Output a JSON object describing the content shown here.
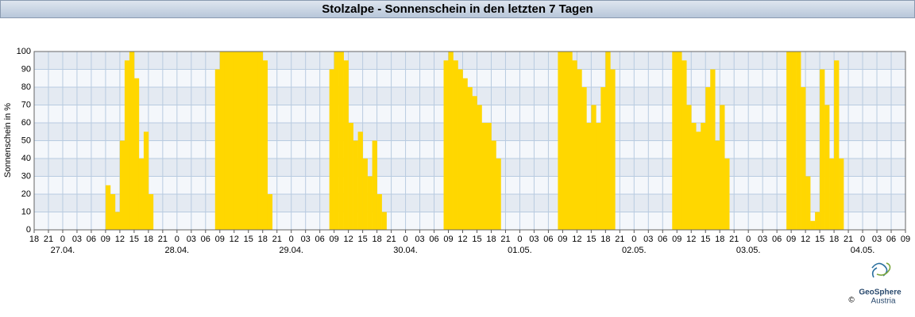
{
  "chart_data": {
    "type": "bar",
    "title": "Stolzalpe - Sonnenschein in den letzten 7 Tagen",
    "y_label": "Sonnenschein in %",
    "color": "#ffd700",
    "x": [
      15,
      16,
      17,
      18,
      19,
      20,
      21,
      22,
      23,
      24,
      38,
      39,
      40,
      41,
      42,
      43,
      44,
      45,
      46,
      47,
      48,
      49,
      62,
      63,
      64,
      65,
      66,
      67,
      68,
      69,
      70,
      71,
      72,
      73,
      86,
      87,
      88,
      89,
      90,
      91,
      92,
      93,
      94,
      95,
      96,
      97,
      110,
      111,
      112,
      113,
      114,
      115,
      116,
      117,
      118,
      119,
      120,
      121,
      134,
      135,
      136,
      137,
      138,
      139,
      140,
      141,
      142,
      143,
      144,
      145,
      158,
      159,
      160,
      161,
      162,
      163,
      164,
      165,
      166,
      167,
      168,
      169
    ],
    "values": [
      25,
      20,
      10,
      50,
      95,
      100,
      85,
      40,
      55,
      20,
      90,
      100,
      100,
      100,
      100,
      100,
      100,
      100,
      100,
      100,
      95,
      20,
      90,
      100,
      100,
      95,
      60,
      50,
      55,
      40,
      30,
      50,
      20,
      10,
      95,
      100,
      95,
      90,
      85,
      80,
      75,
      70,
      60,
      60,
      50,
      40,
      100,
      100,
      100,
      95,
      90,
      80,
      60,
      70,
      60,
      80,
      100,
      90,
      100,
      100,
      95,
      70,
      60,
      55,
      60,
      80,
      90,
      50,
      70,
      40,
      100,
      100,
      100,
      80,
      30,
      5,
      10,
      90,
      70,
      40,
      95,
      40
    ],
    "xlim": [
      0,
      183
    ],
    "xticks": [
      {
        "value": 0,
        "label": "18"
      },
      {
        "value": 3,
        "label": "21"
      },
      {
        "value": 6,
        "label": "0"
      },
      {
        "value": 9,
        "label": "03"
      },
      {
        "value": 12,
        "label": "06"
      },
      {
        "value": 15,
        "label": "09"
      },
      {
        "value": 18,
        "label": "12"
      },
      {
        "value": 21,
        "label": "15"
      },
      {
        "value": 24,
        "label": "18"
      },
      {
        "value": 27,
        "label": "21"
      },
      {
        "value": 30,
        "label": "0"
      },
      {
        "value": 33,
        "label": "03"
      },
      {
        "value": 36,
        "label": "06"
      },
      {
        "value": 39,
        "label": "09"
      },
      {
        "value": 42,
        "label": "12"
      },
      {
        "value": 45,
        "label": "15"
      },
      {
        "value": 48,
        "label": "18"
      },
      {
        "value": 51,
        "label": "21"
      },
      {
        "value": 54,
        "label": "0"
      },
      {
        "value": 57,
        "label": "03"
      },
      {
        "value": 60,
        "label": "06"
      },
      {
        "value": 63,
        "label": "09"
      },
      {
        "value": 66,
        "label": "12"
      },
      {
        "value": 69,
        "label": "15"
      },
      {
        "value": 72,
        "label": "18"
      },
      {
        "value": 75,
        "label": "21"
      },
      {
        "value": 78,
        "label": "0"
      },
      {
        "value": 81,
        "label": "03"
      },
      {
        "value": 84,
        "label": "06"
      },
      {
        "value": 87,
        "label": "09"
      },
      {
        "value": 90,
        "label": "12"
      },
      {
        "value": 93,
        "label": "15"
      },
      {
        "value": 96,
        "label": "18"
      },
      {
        "value": 99,
        "label": "21"
      },
      {
        "value": 102,
        "label": "0"
      },
      {
        "value": 105,
        "label": "03"
      },
      {
        "value": 108,
        "label": "06"
      },
      {
        "value": 111,
        "label": "09"
      },
      {
        "value": 114,
        "label": "12"
      },
      {
        "value": 117,
        "label": "15"
      },
      {
        "value": 120,
        "label": "18"
      },
      {
        "value": 123,
        "label": "21"
      },
      {
        "value": 126,
        "label": "0"
      },
      {
        "value": 129,
        "label": "03"
      },
      {
        "value": 132,
        "label": "06"
      },
      {
        "value": 135,
        "label": "09"
      },
      {
        "value": 138,
        "label": "12"
      },
      {
        "value": 141,
        "label": "15"
      },
      {
        "value": 144,
        "label": "18"
      },
      {
        "value": 147,
        "label": "21"
      },
      {
        "value": 150,
        "label": "0"
      },
      {
        "value": 153,
        "label": "03"
      },
      {
        "value": 156,
        "label": "06"
      },
      {
        "value": 159,
        "label": "09"
      },
      {
        "value": 162,
        "label": "12"
      },
      {
        "value": 165,
        "label": "15"
      },
      {
        "value": 168,
        "label": "18"
      },
      {
        "value": 171,
        "label": "21"
      },
      {
        "value": 174,
        "label": "0"
      },
      {
        "value": 177,
        "label": "03"
      },
      {
        "value": 180,
        "label": "06"
      },
      {
        "value": 183,
        "label": "09"
      }
    ],
    "date_labels": [
      {
        "value": 6,
        "label": "27.04."
      },
      {
        "value": 30,
        "label": "28.04."
      },
      {
        "value": 54,
        "label": "29.04."
      },
      {
        "value": 78,
        "label": "30.04."
      },
      {
        "value": 102,
        "label": "01.05."
      },
      {
        "value": 126,
        "label": "02.05."
      },
      {
        "value": 150,
        "label": "03.05."
      },
      {
        "value": 174,
        "label": "04.05."
      }
    ],
    "ylim": [
      0,
      100
    ],
    "yticks": [
      0,
      10,
      20,
      30,
      40,
      50,
      60,
      70,
      80,
      90,
      100
    ],
    "grid": true
  },
  "footer": {
    "copyright": "©",
    "logo_name": "GeoSphere",
    "logo_sub": "Austria"
  }
}
